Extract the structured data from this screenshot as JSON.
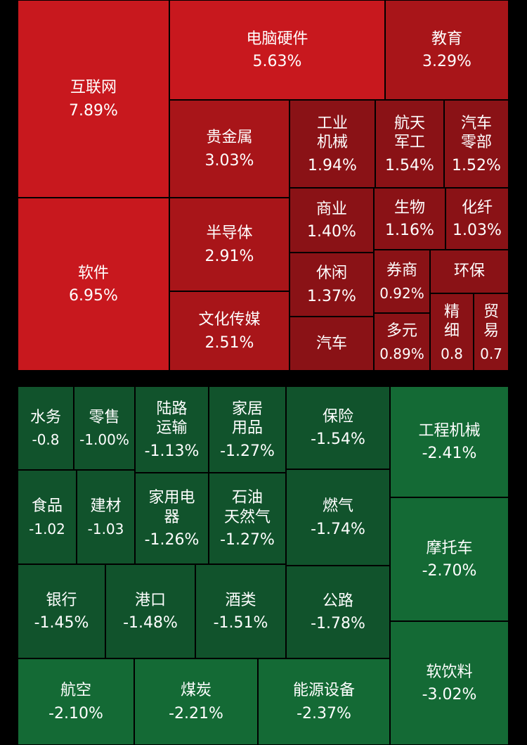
{
  "chart_data": {
    "type": "treemap",
    "colors": {
      "up_strong": "#c8181e",
      "up_mid": "#a81519",
      "up_weak": "#8a1216",
      "down_weak": "#11532c",
      "down_strong": "#146a35"
    },
    "tiles": [
      {
        "id": "hulianwang",
        "name": "互联网",
        "value": "7.89%",
        "change": 7.89
      },
      {
        "id": "ruanjian",
        "name": "软件",
        "value": "6.95%",
        "change": 6.95
      },
      {
        "id": "diannao",
        "name": "电脑硬件",
        "value": "5.63%",
        "change": 5.63
      },
      {
        "id": "jiaoyu",
        "name": "教育",
        "value": "3.29%",
        "change": 3.29
      },
      {
        "id": "guijinshu",
        "name": "贵金属",
        "value": "3.03%",
        "change": 3.03
      },
      {
        "id": "bandaoti",
        "name": "半导体",
        "value": "2.91%",
        "change": 2.91
      },
      {
        "id": "wenhua",
        "name": "文化传媒",
        "value": "2.51%",
        "change": 2.51
      },
      {
        "id": "gongye",
        "name": "工业\n机械",
        "value": "1.94%",
        "change": 1.94
      },
      {
        "id": "hangtian",
        "name": "航天\n军工",
        "value": "1.54%",
        "change": 1.54
      },
      {
        "id": "qiche_lb",
        "name": "汽车\n零部",
        "value": "1.52%",
        "change": 1.52
      },
      {
        "id": "shangye",
        "name": "商业",
        "value": "1.40%",
        "change": 1.4
      },
      {
        "id": "shengwu",
        "name": "生物",
        "value": "1.16%",
        "change": 1.16
      },
      {
        "id": "huaxian",
        "name": "化纤",
        "value": "1.03%",
        "change": 1.03
      },
      {
        "id": "xiuxian",
        "name": "休闲",
        "value": "1.37%",
        "change": 1.37
      },
      {
        "id": "quanshang",
        "name": "券商",
        "value": "0.92%",
        "change": 0.92
      },
      {
        "id": "huanbao",
        "name": "环保",
        "value": "",
        "change": null
      },
      {
        "id": "qiche",
        "name": "汽车",
        "value": "",
        "change": null
      },
      {
        "id": "duoyuan",
        "name": "多元",
        "value": "0.89%",
        "change": 0.89
      },
      {
        "id": "jingxi",
        "name": "精\n细",
        "value": "0.8",
        "change": null
      },
      {
        "id": "maoyi",
        "name": "贸\n易",
        "value": "0.7",
        "change": null
      },
      {
        "id": "shuiwu",
        "name": "水务",
        "value": "-0.8",
        "change": null
      },
      {
        "id": "lingshou",
        "name": "零售",
        "value": "-1.00%",
        "change": -1.0
      },
      {
        "id": "lulu",
        "name": "陆路\n运输",
        "value": "-1.13%",
        "change": -1.13
      },
      {
        "id": "jiaju",
        "name": "家居\n用品",
        "value": "-1.27%",
        "change": -1.27
      },
      {
        "id": "baoxian",
        "name": "保险",
        "value": "-1.54%",
        "change": -1.54
      },
      {
        "id": "gongcheng",
        "name": "工程机械",
        "value": "-2.41%",
        "change": -2.41
      },
      {
        "id": "shipin",
        "name": "食品",
        "value": "-1.02",
        "change": -1.02
      },
      {
        "id": "jiancai",
        "name": "建材",
        "value": "-1.03",
        "change": -1.03
      },
      {
        "id": "jiayong",
        "name": "家用电\n器",
        "value": "-1.26%",
        "change": -1.26
      },
      {
        "id": "shiyou",
        "name": "石油\n天然气",
        "value": "-1.27%",
        "change": -1.27
      },
      {
        "id": "ranqi",
        "name": "燃气",
        "value": "-1.74%",
        "change": -1.74
      },
      {
        "id": "motuo",
        "name": "摩托车",
        "value": "-2.70%",
        "change": -2.7
      },
      {
        "id": "yinhang",
        "name": "银行",
        "value": "-1.45%",
        "change": -1.45
      },
      {
        "id": "gangkou",
        "name": "港口",
        "value": "-1.48%",
        "change": -1.48
      },
      {
        "id": "jiulei",
        "name": "酒类",
        "value": "-1.51%",
        "change": -1.51
      },
      {
        "id": "gonglu",
        "name": "公路",
        "value": "-1.78%",
        "change": -1.78
      },
      {
        "id": "hangkong",
        "name": "航空",
        "value": "-2.10%",
        "change": -2.1
      },
      {
        "id": "meitan",
        "name": "煤炭",
        "value": "-2.21%",
        "change": -2.21
      },
      {
        "id": "nengyuan",
        "name": "能源设备",
        "value": "-2.37%",
        "change": -2.37
      },
      {
        "id": "yinliao",
        "name": "软饮料",
        "value": "-3.02%",
        "change": -3.02
      }
    ]
  }
}
